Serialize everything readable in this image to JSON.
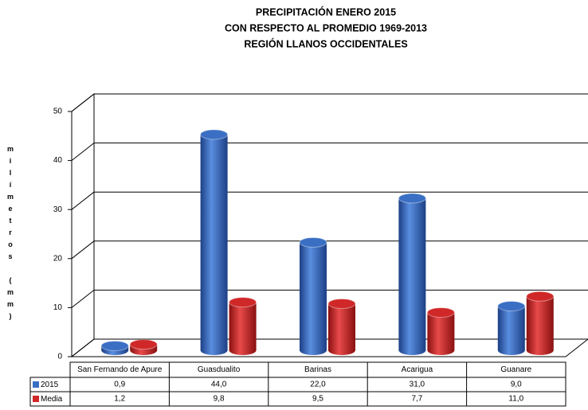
{
  "chart_data": {
    "type": "bar",
    "title": [
      "PRECIPITACIÓN ENERO 2015",
      "CON RESPECTO AL PROMEDIO 1969-2013",
      "REGIÓN LLANOS OCCIDENTALES"
    ],
    "y_label": "milímetros (mm)",
    "categories": [
      "San Fernando de Apure",
      "Guasdualito",
      "Barinas",
      "Acarigua",
      "Guanare"
    ],
    "series": [
      {
        "name": "2015",
        "color": "#3a6fc4",
        "values": [
          0.9,
          44.0,
          22.0,
          31.0,
          9.0
        ],
        "value_labels": [
          "0,9",
          "44,0",
          "22,0",
          "31,0",
          "9,0"
        ]
      },
      {
        "name": "Media",
        "color": "#d02828",
        "values": [
          1.2,
          9.8,
          9.5,
          7.7,
          11.0
        ],
        "value_labels": [
          "1,2",
          "9,8",
          "9,5",
          "7,7",
          "11,0"
        ]
      }
    ],
    "ylim": [
      0,
      50
    ],
    "yticks": [
      0,
      10,
      20,
      30,
      40,
      50
    ],
    "grid": true
  }
}
